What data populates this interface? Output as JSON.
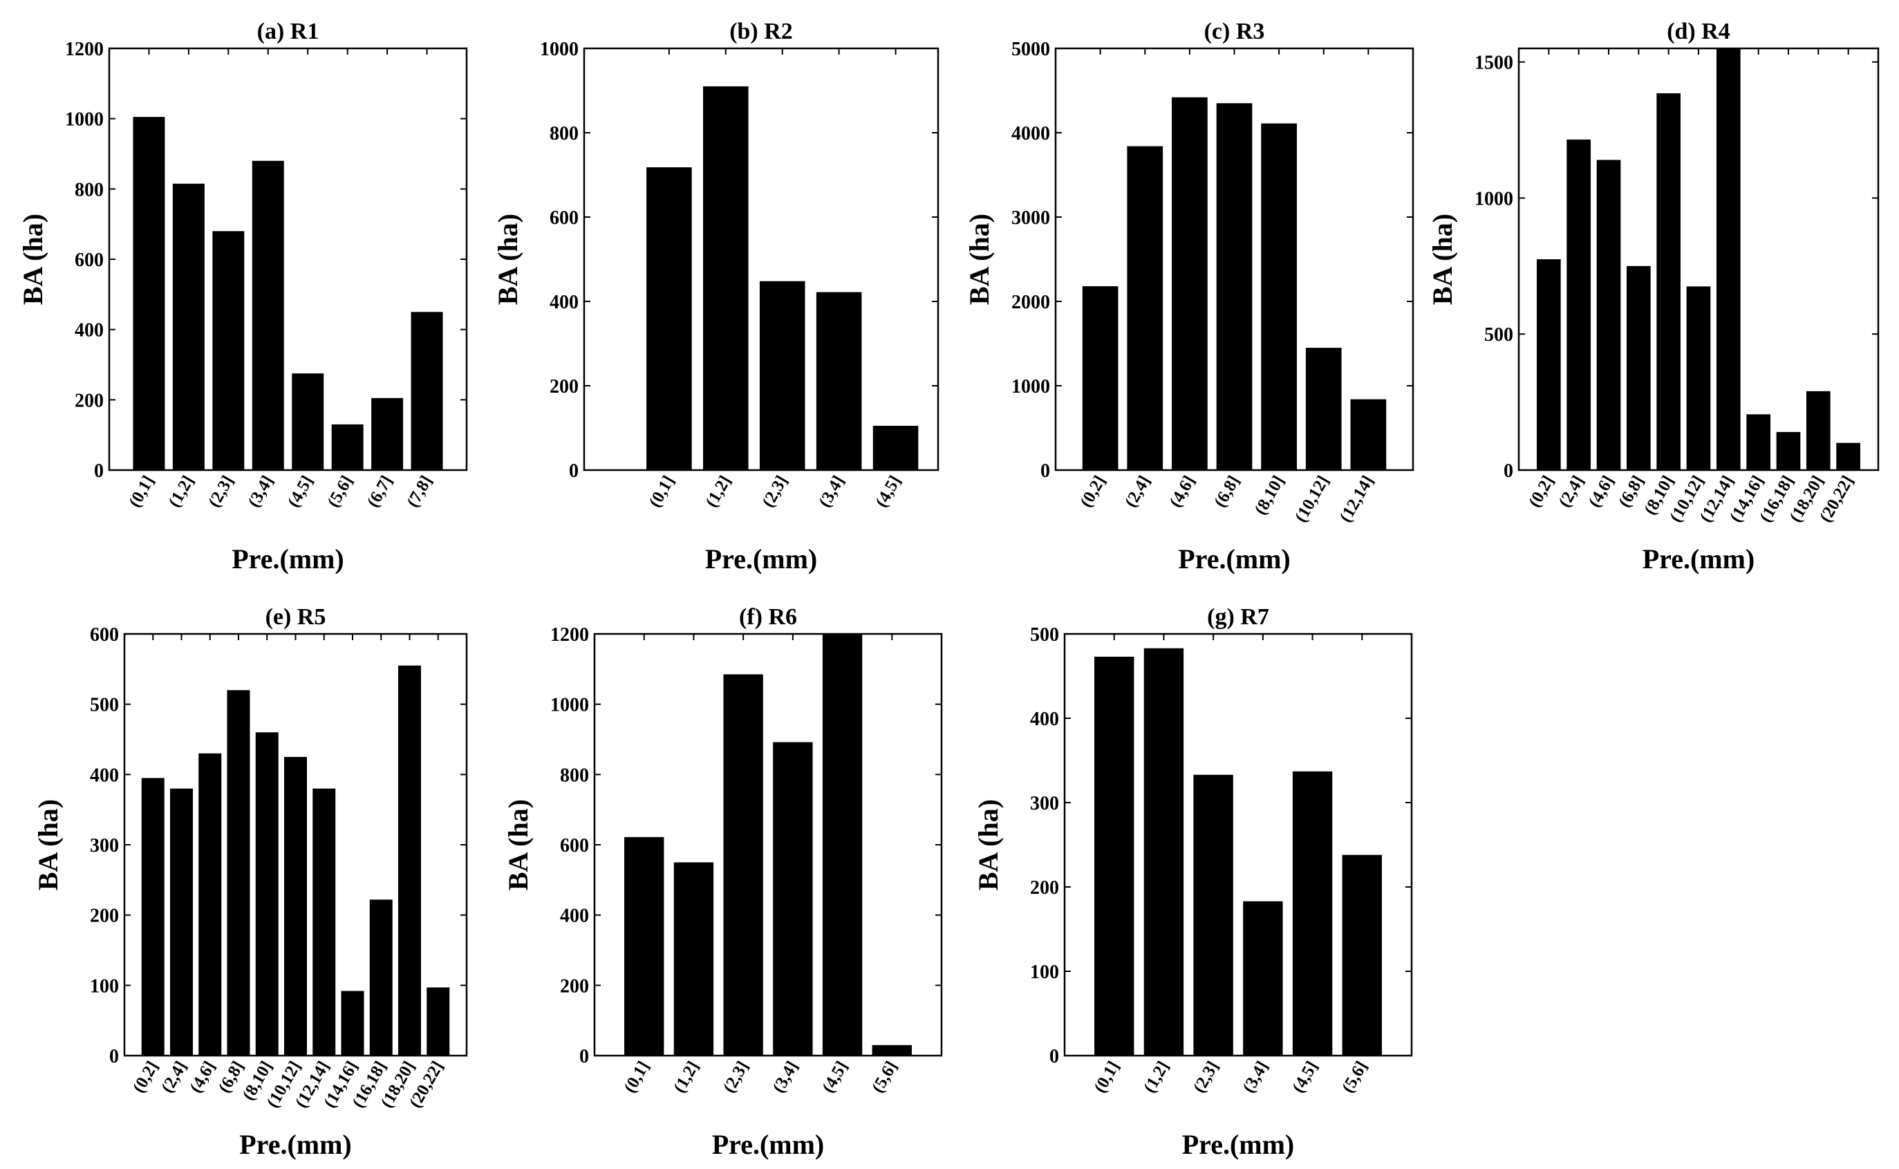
{
  "chart_data": [
    {
      "type": "bar",
      "title": "(a) R1",
      "xlabel": "Pre.(mm)",
      "ylabel": "BA (ha)",
      "categories": [
        "(0,1]",
        "(1,2]",
        "(2,3]",
        "(3,4]",
        "(4,5]",
        "(5,6]",
        "(6,7]",
        "(7,8]"
      ],
      "values": [
        1005,
        815,
        680,
        880,
        275,
        130,
        205,
        450
      ],
      "ylim": [
        0,
        1200
      ],
      "yticks": [
        0,
        200,
        400,
        600,
        800,
        1000,
        1200
      ],
      "xlim": [
        0,
        9
      ]
    },
    {
      "type": "bar",
      "title": "(b) R2",
      "xlabel": "Pre.(mm)",
      "ylabel": "BA (ha)",
      "categories": [
        "(0,1]",
        "(1,2]",
        "(2,3]",
        "(3,4]",
        "(4,5]"
      ],
      "values": [
        718,
        910,
        448,
        422,
        105
      ],
      "ylim": [
        0,
        1000
      ],
      "yticks": [
        0,
        200,
        400,
        600,
        800,
        1000
      ],
      "xlim": [
        -0.5,
        5.75
      ]
    },
    {
      "type": "bar",
      "title": "(c) R3",
      "xlabel": "Pre.(mm)",
      "ylabel": "BA (ha)",
      "categories": [
        "(0,2]",
        "(2,4]",
        "(4,6]",
        "(6,8]",
        "(8,10]",
        "(10,12]",
        "(12,14]"
      ],
      "values": [
        2180,
        3840,
        4420,
        4350,
        4110,
        1450,
        840
      ],
      "ylim": [
        0,
        5000
      ],
      "yticks": [
        0,
        1000,
        2000,
        3000,
        4000,
        5000
      ],
      "xlim": [
        0,
        8
      ]
    },
    {
      "type": "bar",
      "title": "(d) R4",
      "xlabel": "Pre.(mm)",
      "ylabel": "BA (ha)",
      "categories": [
        "(0,2]",
        "(2,4]",
        "(4,6]",
        "(6,8]",
        "(8,10]",
        "(10,12]",
        "(12,14]",
        "(14,16]",
        "(16,18]",
        "(18,20]",
        "(20,22]"
      ],
      "values": [
        775,
        1215,
        1140,
        750,
        1385,
        675,
        1550,
        205,
        140,
        290,
        100
      ],
      "ylim": [
        0,
        1550
      ],
      "yticks": [
        0,
        500,
        1000,
        1500
      ],
      "xlim": [
        0,
        12
      ]
    },
    {
      "type": "bar",
      "title": "(e) R5",
      "xlabel": "Pre.(mm)",
      "ylabel": "BA (ha)",
      "categories": [
        "(0,2]",
        "(2,4]",
        "(4,6]",
        "(6,8]",
        "(8,10]",
        "(10,12]",
        "(12,14]",
        "(14,16]",
        "(16,18]",
        "(18,20]",
        "(20,22]"
      ],
      "values": [
        395,
        380,
        430,
        520,
        460,
        425,
        380,
        92,
        222,
        555,
        97
      ],
      "ylim": [
        0,
        600
      ],
      "yticks": [
        0,
        100,
        200,
        300,
        400,
        500,
        600
      ],
      "xlim": [
        0,
        12
      ]
    },
    {
      "type": "bar",
      "title": "(f) R6",
      "xlabel": "Pre.(mm)",
      "ylabel": "BA (ha)",
      "categories": [
        "(0,1]",
        "(1,2]",
        "(2,3]",
        "(3,4]",
        "(4,5]",
        "(5,6]"
      ],
      "values": [
        622,
        550,
        1085,
        892,
        1200,
        30
      ],
      "ylim": [
        0,
        1200
      ],
      "yticks": [
        0,
        200,
        400,
        600,
        800,
        1000,
        1200
      ],
      "xlim": [
        0,
        7
      ]
    },
    {
      "type": "bar",
      "title": "(g) R7",
      "xlabel": "Pre.(mm)",
      "ylabel": "BA (ha)",
      "categories": [
        "(0,1]",
        "(1,2]",
        "(2,3]",
        "(3,4]",
        "(4,5]",
        "(5,6]"
      ],
      "values": [
        473,
        483,
        333,
        183,
        337,
        238
      ],
      "ylim": [
        0,
        500
      ],
      "yticks": [
        0,
        100,
        200,
        300,
        400,
        500
      ],
      "xlim": [
        0,
        7
      ]
    }
  ]
}
